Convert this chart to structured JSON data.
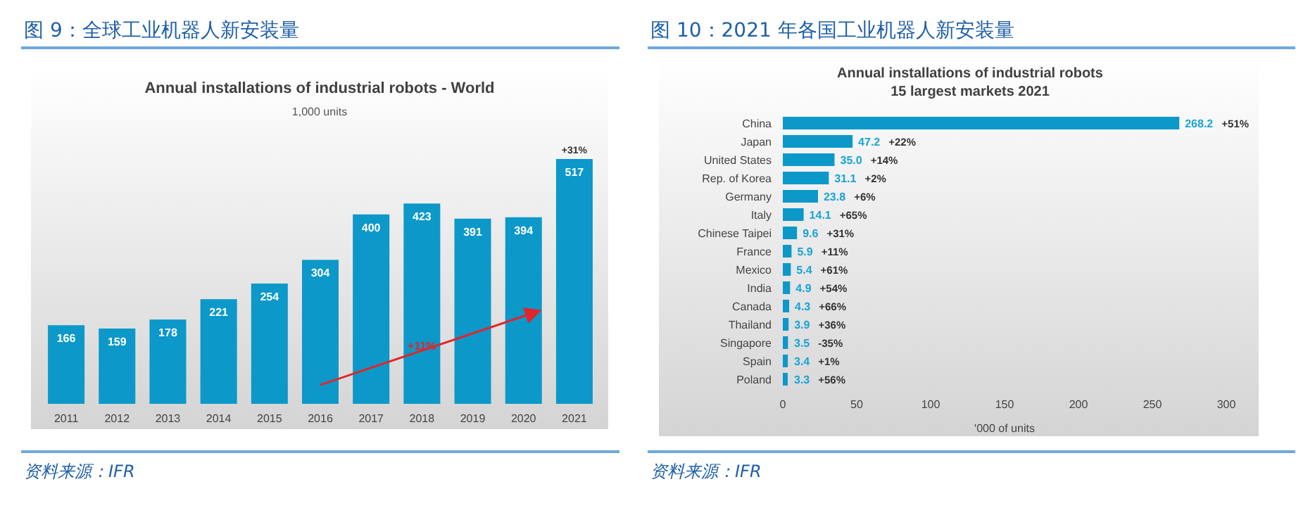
{
  "chart_data": [
    {
      "type": "bar",
      "title": "图 9：全球工业机器人新安装量",
      "subtitle": "Annual installations of industrial robots - World",
      "categories": [
        "2011",
        "2012",
        "2013",
        "2014",
        "2015",
        "2016",
        "2017",
        "2018",
        "2019",
        "2020",
        "2021"
      ],
      "values": [
        166,
        159,
        178,
        221,
        254,
        304,
        400,
        423,
        391,
        394,
        517
      ],
      "color": "#0c98c9",
      "data_labels": true,
      "annotations": [
        "1,000 units",
        "+31%",
        "+11%",
        "资料来源：IFR"
      ]
    },
    {
      "type": "bar",
      "orientation": "horizontal",
      "title": "图 10：2021 年各国工业机器人新安装量",
      "subtitle": "Annual installations of industrial robots",
      "categories": [
        "China",
        "Japan",
        "United States",
        "Rep. of Korea",
        "Germany",
        "Italy",
        "Chinese Taipei",
        "France",
        "Mexico",
        "India",
        "Canada",
        "Thailand",
        "Singapore",
        "Spain",
        "Poland"
      ],
      "values": [
        268.2,
        47.2,
        35.0,
        31.1,
        23.8,
        14.1,
        9.6,
        5.9,
        5.4,
        4.9,
        4.3,
        3.9,
        3.5,
        3.4,
        3.3
      ],
      "value_labels": [
        "268.2",
        "47.2",
        "35.0",
        "31.1",
        "23.8",
        "14.1",
        "9.6",
        "5.9",
        "5.4",
        "4.9",
        "4.3",
        "3.9",
        "3.5",
        "3.4",
        "3.3"
      ],
      "color": "#0c98c9",
      "xlim": [
        0,
        300
      ],
      "xticks": [
        0,
        50,
        100,
        150,
        200,
        250,
        300
      ],
      "xlabel": "'000 of units",
      "annotations": [
        "15 largest markets 2021",
        "+51%",
        "+22%",
        "+14%",
        "+2%",
        "+6%",
        "+65%",
        "+31%",
        "+11%",
        "+61%",
        "+54%",
        "+66%",
        "+36%",
        "-35%",
        "+1%",
        "+56%",
        "资料来源：IFR"
      ]
    }
  ]
}
